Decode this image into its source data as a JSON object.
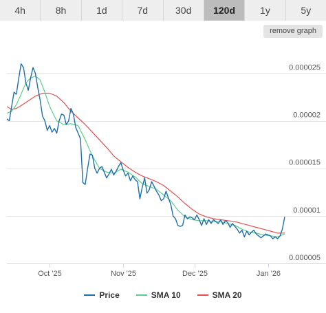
{
  "tabs": [
    {
      "label": "4h",
      "active": false
    },
    {
      "label": "8h",
      "active": false
    },
    {
      "label": "1d",
      "active": false
    },
    {
      "label": "7d",
      "active": false
    },
    {
      "label": "30d",
      "active": false
    },
    {
      "label": "120d",
      "active": true
    },
    {
      "label": "1y",
      "active": false
    },
    {
      "label": "5y",
      "active": false
    }
  ],
  "remove_graph_label": "remove graph",
  "chart_data": {
    "type": "line",
    "x_range": [
      "2025-09-13",
      "2026-01-08"
    ],
    "y_ticks": [
      {
        "value": 5e-06,
        "label": "0.000005"
      },
      {
        "value": 1e-05,
        "label": "0.00001"
      },
      {
        "value": 1.5e-05,
        "label": "0.000015"
      },
      {
        "value": 2e-05,
        "label": "0.00002"
      },
      {
        "value": 2.5e-05,
        "label": "0.000025"
      }
    ],
    "x_ticks": [
      {
        "date": "2025-10-01",
        "label": "Oct '25"
      },
      {
        "date": "2025-11-01",
        "label": "Nov '25"
      },
      {
        "date": "2025-12-01",
        "label": "Dec '25"
      },
      {
        "date": "2026-01-01",
        "label": "Jan '26"
      }
    ],
    "ylim": [
      5e-06,
      2.8e-05
    ],
    "grid": true,
    "legend_position": "bottom",
    "series": [
      {
        "name": "Price",
        "color": "#1f6ea8",
        "points": [
          [
            "2025-09-13",
            2.02e-05
          ],
          [
            "2025-09-14",
            2e-05
          ],
          [
            "2025-09-15",
            2.15e-05
          ],
          [
            "2025-09-16",
            2.3e-05
          ],
          [
            "2025-09-17",
            2.28e-05
          ],
          [
            "2025-09-18",
            2.45e-05
          ],
          [
            "2025-09-19",
            2.6e-05
          ],
          [
            "2025-09-20",
            2.56e-05
          ],
          [
            "2025-09-21",
            2.4e-05
          ],
          [
            "2025-09-22",
            2.32e-05
          ],
          [
            "2025-09-23",
            2.45e-05
          ],
          [
            "2025-09-24",
            2.56e-05
          ],
          [
            "2025-09-25",
            2.5e-05
          ],
          [
            "2025-09-26",
            2.35e-05
          ],
          [
            "2025-09-27",
            2.22e-05
          ],
          [
            "2025-09-28",
            2.05e-05
          ],
          [
            "2025-09-29",
            2e-05
          ],
          [
            "2025-09-30",
            1.9e-05
          ],
          [
            "2025-10-01",
            1.95e-05
          ],
          [
            "2025-10-02",
            1.88e-05
          ],
          [
            "2025-10-03",
            1.92e-05
          ],
          [
            "2025-10-04",
            1.87e-05
          ],
          [
            "2025-10-05",
            2e-05
          ],
          [
            "2025-10-06",
            2.07e-05
          ],
          [
            "2025-10-07",
            2.06e-05
          ],
          [
            "2025-10-08",
            1.96e-05
          ],
          [
            "2025-10-09",
            2e-05
          ],
          [
            "2025-10-10",
            2.13e-05
          ],
          [
            "2025-10-11",
            2.07e-05
          ],
          [
            "2025-10-12",
            1.93e-05
          ],
          [
            "2025-10-13",
            1.87e-05
          ],
          [
            "2025-10-14",
            1.81e-05
          ],
          [
            "2025-10-15",
            1.35e-05
          ],
          [
            "2025-10-16",
            1.33e-05
          ],
          [
            "2025-10-17",
            1.5e-05
          ],
          [
            "2025-10-18",
            1.65e-05
          ],
          [
            "2025-10-19",
            1.64e-05
          ],
          [
            "2025-10-20",
            1.5e-05
          ],
          [
            "2025-10-21",
            1.45e-05
          ],
          [
            "2025-10-22",
            1.5e-05
          ],
          [
            "2025-10-23",
            1.52e-05
          ],
          [
            "2025-10-24",
            1.46e-05
          ],
          [
            "2025-10-25",
            1.4e-05
          ],
          [
            "2025-10-26",
            1.44e-05
          ],
          [
            "2025-10-27",
            1.49e-05
          ],
          [
            "2025-10-28",
            1.43e-05
          ],
          [
            "2025-10-29",
            1.47e-05
          ],
          [
            "2025-10-30",
            1.52e-05
          ],
          [
            "2025-10-31",
            1.56e-05
          ],
          [
            "2025-11-01",
            1.48e-05
          ],
          [
            "2025-11-02",
            1.42e-05
          ],
          [
            "2025-11-03",
            1.45e-05
          ],
          [
            "2025-11-04",
            1.37e-05
          ],
          [
            "2025-11-05",
            1.42e-05
          ],
          [
            "2025-11-06",
            1.38e-05
          ],
          [
            "2025-11-07",
            1.36e-05
          ],
          [
            "2025-11-08",
            1.18e-05
          ],
          [
            "2025-11-09",
            1.3e-05
          ],
          [
            "2025-11-10",
            1.4e-05
          ],
          [
            "2025-11-11",
            1.24e-05
          ],
          [
            "2025-11-12",
            1.28e-05
          ],
          [
            "2025-11-13",
            1.36e-05
          ],
          [
            "2025-11-14",
            1.31e-05
          ],
          [
            "2025-11-15",
            1.26e-05
          ],
          [
            "2025-11-16",
            1.22e-05
          ],
          [
            "2025-11-17",
            1.16e-05
          ],
          [
            "2025-11-18",
            1.18e-05
          ],
          [
            "2025-11-19",
            1.26e-05
          ],
          [
            "2025-11-20",
            1.19e-05
          ],
          [
            "2025-11-21",
            1.12e-05
          ],
          [
            "2025-11-22",
            1e-05
          ],
          [
            "2025-11-23",
            9.7e-06
          ],
          [
            "2025-11-24",
            9e-06
          ],
          [
            "2025-11-25",
            8.9e-06
          ],
          [
            "2025-11-26",
            9e-06
          ],
          [
            "2025-11-27",
            1.01e-05
          ],
          [
            "2025-11-28",
            9.7e-06
          ],
          [
            "2025-11-29",
            9.9e-06
          ],
          [
            "2025-11-30",
            9.8e-06
          ],
          [
            "2025-12-01",
            9.6e-06
          ],
          [
            "2025-12-02",
            1.01e-05
          ],
          [
            "2025-12-03",
            9.6e-06
          ],
          [
            "2025-12-04",
            9e-06
          ],
          [
            "2025-12-05",
            9.7e-06
          ],
          [
            "2025-12-06",
            9.1e-06
          ],
          [
            "2025-12-07",
            9.6e-06
          ],
          [
            "2025-12-08",
            9.2e-06
          ],
          [
            "2025-12-09",
            9.6e-06
          ],
          [
            "2025-12-10",
            9.4e-06
          ],
          [
            "2025-12-11",
            9.2e-06
          ],
          [
            "2025-12-12",
            9.6e-06
          ],
          [
            "2025-12-13",
            9.1e-06
          ],
          [
            "2025-12-14",
            9.5e-06
          ],
          [
            "2025-12-15",
            9.3e-06
          ],
          [
            "2025-12-16",
            8.8e-06
          ],
          [
            "2025-12-17",
            9.2e-06
          ],
          [
            "2025-12-18",
            8.9e-06
          ],
          [
            "2025-12-19",
            8.6e-06
          ],
          [
            "2025-12-20",
            8.2e-06
          ],
          [
            "2025-12-21",
            8.5e-06
          ],
          [
            "2025-12-22",
            7.8e-06
          ],
          [
            "2025-12-23",
            8.4e-06
          ],
          [
            "2025-12-24",
            8e-06
          ],
          [
            "2025-12-25",
            8.3e-06
          ],
          [
            "2025-12-26",
            8.5e-06
          ],
          [
            "2025-12-27",
            8.1e-06
          ],
          [
            "2025-12-28",
            7.9e-06
          ],
          [
            "2025-12-29",
            7.7e-06
          ],
          [
            "2025-12-30",
            7.9e-06
          ],
          [
            "2025-12-31",
            8.1e-06
          ],
          [
            "2026-01-01",
            8e-06
          ],
          [
            "2026-01-02",
            7.9e-06
          ],
          [
            "2026-01-03",
            7.6e-06
          ],
          [
            "2026-01-04",
            7.8e-06
          ],
          [
            "2026-01-05",
            7.6e-06
          ],
          [
            "2026-01-06",
            7.9e-06
          ],
          [
            "2026-01-07",
            8.6e-06
          ],
          [
            "2026-01-08",
            9.9e-06
          ]
        ]
      },
      {
        "name": "SMA 10",
        "color": "#5bcf8a",
        "points": [
          [
            "2025-09-13",
            2.08e-05
          ],
          [
            "2025-09-15",
            2.1e-05
          ],
          [
            "2025-09-17",
            2.17e-05
          ],
          [
            "2025-09-19",
            2.28e-05
          ],
          [
            "2025-09-21",
            2.4e-05
          ],
          [
            "2025-09-23",
            2.45e-05
          ],
          [
            "2025-09-25",
            2.47e-05
          ],
          [
            "2025-09-27",
            2.43e-05
          ],
          [
            "2025-09-29",
            2.3e-05
          ],
          [
            "2025-10-01",
            2.15e-05
          ],
          [
            "2025-10-04",
            2e-05
          ],
          [
            "2025-10-07",
            1.96e-05
          ],
          [
            "2025-10-10",
            1.97e-05
          ],
          [
            "2025-10-13",
            1.95e-05
          ],
          [
            "2025-10-16",
            1.8e-05
          ],
          [
            "2025-10-19",
            1.63e-05
          ],
          [
            "2025-10-22",
            1.5e-05
          ],
          [
            "2025-10-25",
            1.46e-05
          ],
          [
            "2025-10-28",
            1.45e-05
          ],
          [
            "2025-10-31",
            1.49e-05
          ],
          [
            "2025-11-03",
            1.46e-05
          ],
          [
            "2025-11-06",
            1.41e-05
          ],
          [
            "2025-11-09",
            1.34e-05
          ],
          [
            "2025-11-12",
            1.31e-05
          ],
          [
            "2025-11-15",
            1.28e-05
          ],
          [
            "2025-11-18",
            1.22e-05
          ],
          [
            "2025-11-21",
            1.16e-05
          ],
          [
            "2025-11-24",
            1.06e-05
          ],
          [
            "2025-11-27",
            9.9e-06
          ],
          [
            "2025-11-30",
            9.6e-06
          ],
          [
            "2025-12-03",
            9.5e-06
          ],
          [
            "2025-12-06",
            9.5e-06
          ],
          [
            "2025-12-09",
            9.4e-06
          ],
          [
            "2025-12-12",
            9.4e-06
          ],
          [
            "2025-12-15",
            9.2e-06
          ],
          [
            "2025-12-18",
            9e-06
          ],
          [
            "2025-12-21",
            8.6e-06
          ],
          [
            "2025-12-24",
            8.3e-06
          ],
          [
            "2025-12-27",
            8.2e-06
          ],
          [
            "2025-12-30",
            8e-06
          ],
          [
            "2026-01-02",
            7.9e-06
          ],
          [
            "2026-01-05",
            7.8e-06
          ],
          [
            "2026-01-08",
            8.1e-06
          ]
        ]
      },
      {
        "name": "SMA 20",
        "color": "#e05050",
        "points": [
          [
            "2025-09-13",
            2.15e-05
          ],
          [
            "2025-09-15",
            2.12e-05
          ],
          [
            "2025-09-17",
            2.13e-05
          ],
          [
            "2025-09-19",
            2.16e-05
          ],
          [
            "2025-09-22",
            2.21e-05
          ],
          [
            "2025-09-25",
            2.26e-05
          ],
          [
            "2025-09-28",
            2.29e-05
          ],
          [
            "2025-10-01",
            2.29e-05
          ],
          [
            "2025-10-04",
            2.26e-05
          ],
          [
            "2025-10-07",
            2.19e-05
          ],
          [
            "2025-10-10",
            2.1e-05
          ],
          [
            "2025-10-13",
            2.03e-05
          ],
          [
            "2025-10-16",
            1.96e-05
          ],
          [
            "2025-10-19",
            1.88e-05
          ],
          [
            "2025-10-22",
            1.8e-05
          ],
          [
            "2025-10-25",
            1.72e-05
          ],
          [
            "2025-10-28",
            1.63e-05
          ],
          [
            "2025-10-31",
            1.57e-05
          ],
          [
            "2025-11-03",
            1.51e-05
          ],
          [
            "2025-11-06",
            1.46e-05
          ],
          [
            "2025-11-09",
            1.42e-05
          ],
          [
            "2025-11-12",
            1.39e-05
          ],
          [
            "2025-11-15",
            1.36e-05
          ],
          [
            "2025-11-18",
            1.32e-05
          ],
          [
            "2025-11-21",
            1.26e-05
          ],
          [
            "2025-11-24",
            1.2e-05
          ],
          [
            "2025-11-27",
            1.13e-05
          ],
          [
            "2025-11-30",
            1.07e-05
          ],
          [
            "2025-12-03",
            1.02e-05
          ],
          [
            "2025-12-06",
            9.9e-06
          ],
          [
            "2025-12-09",
            9.7e-06
          ],
          [
            "2025-12-12",
            9.6e-06
          ],
          [
            "2025-12-15",
            9.5e-06
          ],
          [
            "2025-12-18",
            9.4e-06
          ],
          [
            "2025-12-21",
            9.2e-06
          ],
          [
            "2025-12-24",
            9e-06
          ],
          [
            "2025-12-27",
            8.8e-06
          ],
          [
            "2025-12-30",
            8.6e-06
          ],
          [
            "2026-01-02",
            8.4e-06
          ],
          [
            "2026-01-05",
            8.2e-06
          ],
          [
            "2026-01-08",
            8.2e-06
          ]
        ]
      }
    ]
  }
}
